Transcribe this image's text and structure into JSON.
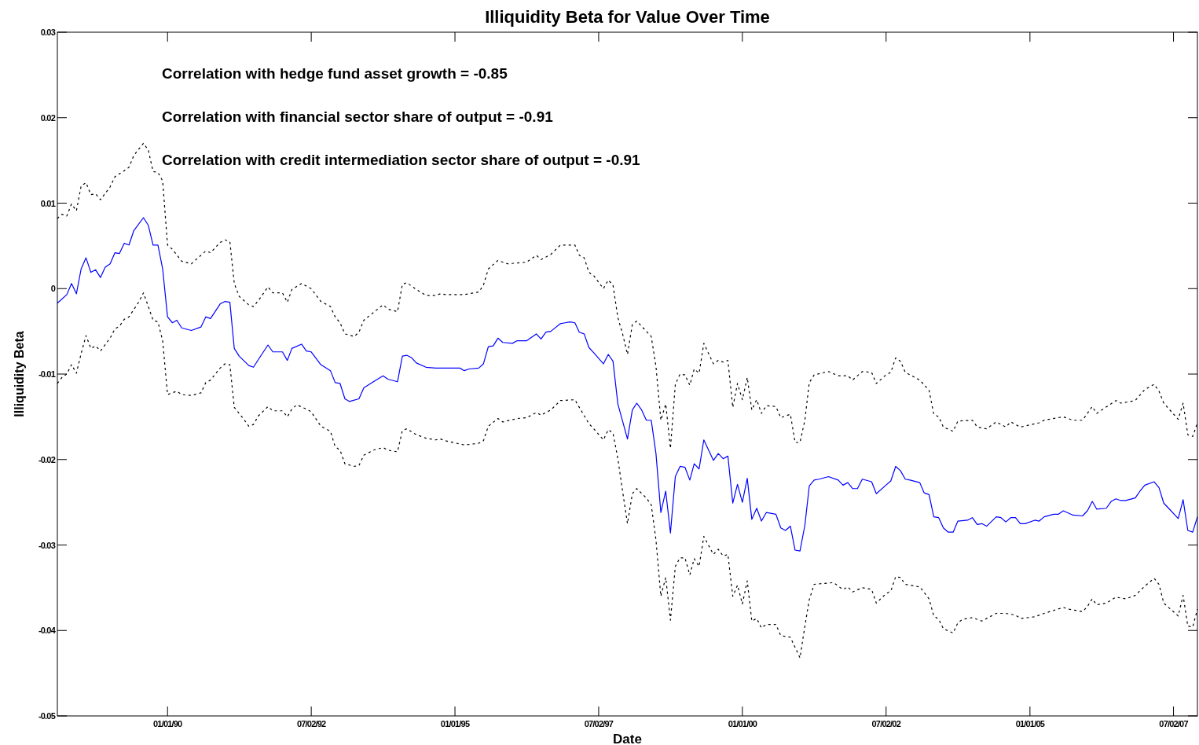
{
  "chart_data": {
    "type": "line",
    "title": "Illiquidity Beta for Value Over Time",
    "xlabel": "Date",
    "ylabel": "Illiquidity Beta",
    "annotations": [
      "Correlation with hedge fund asset growth = -0.85",
      "Correlation with financial sector share of output = -0.91",
      "Correlation with credit intermediation sector share of output = -0.91"
    ],
    "xlim": [
      "1988-02-01",
      "2007-12-01"
    ],
    "xticks": [
      {
        "value": "1990-01-01",
        "label": "01/01/90"
      },
      {
        "value": "1992-07-02",
        "label": "07/02/92"
      },
      {
        "value": "1995-01-01",
        "label": "01/01/95"
      },
      {
        "value": "1997-07-02",
        "label": "07/02/97"
      },
      {
        "value": "2000-01-01",
        "label": "01/01/00"
      },
      {
        "value": "2002-07-02",
        "label": "07/02/02"
      },
      {
        "value": "2005-01-01",
        "label": "01/01/05"
      },
      {
        "value": "2007-07-02",
        "label": "07/02/07"
      }
    ],
    "ylim": [
      -0.05,
      0.03
    ],
    "yticks": [
      -0.05,
      -0.04,
      -0.03,
      -0.02,
      -0.01,
      0,
      0.01,
      0.02,
      0.03
    ],
    "series": [
      {
        "color": "#000000",
        "line_style": "dashed",
        "x": [
          "1988-02",
          "1988-03",
          "1988-04",
          "1988-05",
          "1988-06",
          "1988-07",
          "1988-08",
          "1988-09",
          "1988-10",
          "1988-11",
          "1989-01",
          "1989-02",
          "1989-04",
          "1989-05",
          "1989-06",
          "1989-08",
          "1989-09",
          "1989-10",
          "1989-11",
          "1989-12",
          "1990-01",
          "1990-02",
          "1990-04",
          "1990-06",
          "1990-08",
          "1990-09",
          "1990-10",
          "1990-12",
          "1991-01",
          "1991-02",
          "1991-03",
          "1991-04",
          "1991-06",
          "1991-07",
          "1991-08",
          "1991-10",
          "1991-11",
          "1992-01",
          "1992-02",
          "1992-03",
          "1992-05",
          "1992-07",
          "1992-09",
          "1992-11",
          "1992-12",
          "1993-01",
          "1993-02",
          "1993-04",
          "1993-05",
          "1993-06",
          "1993-08",
          "1993-10",
          "1993-11",
          "1994-01",
          "1994-02",
          "1994-03",
          "1994-05",
          "1994-07",
          "1994-09",
          "1994-10",
          "1994-11",
          "1995-03",
          "1995-06",
          "1995-07",
          "1995-08",
          "1995-10",
          "1995-12",
          "1996-04",
          "1996-06",
          "1996-07",
          "1996-09",
          "1996-11",
          "1997-02",
          "1997-03",
          "1997-04",
          "1997-05",
          "1997-06",
          "1997-08",
          "1997-09",
          "1997-10",
          "1997-11",
          "1997-12",
          "1998-01",
          "1998-02",
          "1998-03",
          "1998-05",
          "1998-06",
          "1998-07",
          "1998-08",
          "1998-09",
          "1998-10",
          "1998-11",
          "1998-12",
          "1999-01",
          "1999-02",
          "1999-03",
          "1999-04",
          "1999-05",
          "1999-07",
          "1999-08",
          "1999-09",
          "1999-10",
          "1999-11",
          "1999-12",
          "2000-01",
          "2000-02",
          "2000-03",
          "2000-04",
          "2000-05",
          "2000-06",
          "2000-08",
          "2000-09",
          "2000-11",
          "2000-12",
          "2001-01",
          "2001-02",
          "2001-03",
          "2001-04",
          "2001-07",
          "2001-09",
          "2001-11",
          "2001-12",
          "2002-02",
          "2002-04",
          "2002-05",
          "2002-07",
          "2002-08",
          "2002-09",
          "2002-10",
          "2002-11",
          "2003-02",
          "2003-04",
          "2003-05",
          "2003-06",
          "2003-07",
          "2003-09",
          "2003-10",
          "2004-01",
          "2004-02",
          "2004-04",
          "2004-06",
          "2004-08",
          "2004-09",
          "2004-11",
          "2005-03",
          "2005-04",
          "2005-08",
          "2005-10",
          "2005-12",
          "2006-02",
          "2006-03",
          "2006-07",
          "2006-08",
          "2006-11",
          "2007-01",
          "2007-03",
          "2007-04",
          "2007-05",
          "2007-08",
          "2007-09",
          "2007-10",
          "2007-11",
          "2007-12"
        ],
        "values": [
          0.0082,
          0.0087,
          0.0085,
          0.0099,
          0.0091,
          0.012,
          0.0124,
          0.011,
          0.0111,
          0.0104,
          0.0119,
          0.0131,
          0.0138,
          0.0142,
          0.0156,
          0.017,
          0.0162,
          0.0137,
          0.0136,
          0.0126,
          0.0051,
          0.0046,
          0.0032,
          0.0029,
          0.0039,
          0.0044,
          0.0042,
          0.0054,
          0.0057,
          0.0055,
          0.0006,
          -0.0009,
          -0.0019,
          -0.0021,
          -0.0014,
          0.0002,
          -0.0005,
          -0.0005,
          -0.0016,
          -0.0001,
          0.0006,
          0,
          -0.0015,
          -0.0021,
          -0.0033,
          -0.004,
          -0.0053,
          -0.0056,
          -0.0051,
          -0.0037,
          -0.0028,
          -0.0019,
          -0.0024,
          -0.0027,
          0.0005,
          0.0007,
          -0.0001,
          -0.0008,
          -0.0008,
          -0.0006,
          -0.0007,
          -0.0007,
          -0.0004,
          0.0004,
          0.0023,
          0.0033,
          0.0029,
          0.0031,
          0.0039,
          0.0034,
          0.004,
          0.0051,
          0.0051,
          0.0039,
          0.0036,
          0.0019,
          0.0015,
          0,
          0.001,
          0.0004,
          -0.0034,
          -0.0053,
          -0.0077,
          -0.0042,
          -0.0038,
          -0.005,
          -0.0056,
          -0.0091,
          -0.0154,
          -0.0135,
          -0.0187,
          -0.0112,
          -0.01,
          -0.0101,
          -0.0113,
          -0.0094,
          -0.0099,
          -0.0064,
          -0.0088,
          -0.0084,
          -0.0086,
          -0.0084,
          -0.0139,
          -0.0111,
          -0.013,
          -0.0104,
          -0.0142,
          -0.013,
          -0.0146,
          -0.0137,
          -0.0138,
          -0.0151,
          -0.0147,
          -0.018,
          -0.018,
          -0.0154,
          -0.011,
          -0.0101,
          -0.0097,
          -0.0102,
          -0.0102,
          -0.0107,
          -0.0097,
          -0.0098,
          -0.0111,
          -0.0101,
          -0.0098,
          -0.0081,
          -0.0085,
          -0.0098,
          -0.0107,
          -0.0119,
          -0.0147,
          -0.015,
          -0.0162,
          -0.0167,
          -0.0155,
          -0.0154,
          -0.0162,
          -0.0164,
          -0.0156,
          -0.0162,
          -0.0156,
          -0.0162,
          -0.0157,
          -0.0154,
          -0.015,
          -0.0154,
          -0.0154,
          -0.0138,
          -0.0146,
          -0.0131,
          -0.0134,
          -0.0131,
          -0.0118,
          -0.0112,
          -0.012,
          -0.0134,
          -0.0153,
          -0.0134,
          -0.0171,
          -0.0173,
          -0.0157
        ]
      },
      {
        "color": "#0000ff",
        "line_style": "solid",
        "x": [
          "1988-02",
          "1988-04",
          "1988-05",
          "1988-06",
          "1988-07",
          "1988-08",
          "1988-09",
          "1988-10",
          "1988-11",
          "1988-12",
          "1989-01",
          "1989-02",
          "1989-03",
          "1989-04",
          "1989-05",
          "1989-06",
          "1989-08",
          "1989-09",
          "1989-10",
          "1989-11",
          "1989-12",
          "1990-01",
          "1990-02",
          "1990-03",
          "1990-04",
          "1990-06",
          "1990-08",
          "1990-09",
          "1990-10",
          "1990-12",
          "1991-01",
          "1991-02",
          "1991-03",
          "1991-04",
          "1991-06",
          "1991-07",
          "1991-08",
          "1991-10",
          "1991-11",
          "1992-01",
          "1992-02",
          "1992-03",
          "1992-05",
          "1992-06",
          "1992-07",
          "1992-09",
          "1992-11",
          "1992-12",
          "1993-01",
          "1993-02",
          "1993-03",
          "1993-05",
          "1993-06",
          "1993-08",
          "1993-10",
          "1993-11",
          "1994-01",
          "1994-02",
          "1994-03",
          "1994-04",
          "1994-05",
          "1994-07",
          "1994-09",
          "1994-11",
          "1995-02",
          "1995-03",
          "1995-04",
          "1995-06",
          "1995-07",
          "1995-08",
          "1995-09",
          "1995-10",
          "1995-11",
          "1996-01",
          "1996-02",
          "1996-04",
          "1996-06",
          "1996-07",
          "1996-08",
          "1996-09",
          "1996-11",
          "1996-12",
          "1997-01",
          "1997-02",
          "1997-03",
          "1997-04",
          "1997-05",
          "1997-06",
          "1997-08",
          "1997-09",
          "1997-10",
          "1997-11",
          "1997-12",
          "1998-01",
          "1998-02",
          "1998-03",
          "1998-04",
          "1998-05",
          "1998-06",
          "1998-07",
          "1998-08",
          "1998-09",
          "1998-10",
          "1998-11",
          "1998-12",
          "1999-01",
          "1999-02",
          "1999-03",
          "1999-04",
          "1999-05",
          "1999-07",
          "1999-08",
          "1999-09",
          "1999-10",
          "1999-11",
          "1999-12",
          "2000-01",
          "2000-02",
          "2000-03",
          "2000-04",
          "2000-05",
          "2000-06",
          "2000-08",
          "2000-09",
          "2000-10",
          "2000-11",
          "2000-12",
          "2001-01",
          "2001-02",
          "2001-03",
          "2001-04",
          "2001-05",
          "2001-07",
          "2001-09",
          "2001-10",
          "2001-11",
          "2001-12",
          "2002-01",
          "2002-02",
          "2002-04",
          "2002-05",
          "2002-07",
          "2002-08",
          "2002-09",
          "2002-10",
          "2002-11",
          "2002-12",
          "2003-02",
          "2003-03",
          "2003-04",
          "2003-05",
          "2003-06",
          "2003-07",
          "2003-08",
          "2003-09",
          "2003-10",
          "2003-12",
          "2004-01",
          "2004-02",
          "2004-03",
          "2004-04",
          "2004-06",
          "2004-07",
          "2004-08",
          "2004-09",
          "2004-10",
          "2004-11",
          "2004-12",
          "2005-02",
          "2005-03",
          "2005-04",
          "2005-06",
          "2005-07",
          "2005-08",
          "2005-10",
          "2005-12",
          "2006-01",
          "2006-02",
          "2006-03",
          "2006-05",
          "2006-06",
          "2006-07",
          "2006-08",
          "2006-09",
          "2006-11",
          "2006-12",
          "2007-01",
          "2007-03",
          "2007-04",
          "2007-05",
          "2007-06",
          "2007-08",
          "2007-09",
          "2007-10",
          "2007-11",
          "2007-12"
        ],
        "values": [
          -0.0017,
          -0.0007,
          0.0006,
          -0.0006,
          0.0023,
          0.0036,
          0.0019,
          0.0022,
          0.0013,
          0.0025,
          0.0029,
          0.0042,
          0.0041,
          0.0053,
          0.0051,
          0.0068,
          0.0083,
          0.0074,
          0.0051,
          0.0051,
          0.0023,
          -0.0033,
          -0.004,
          -0.0037,
          -0.0046,
          -0.0049,
          -0.0045,
          -0.0033,
          -0.0035,
          -0.0018,
          -0.0015,
          -0.0016,
          -0.007,
          -0.0079,
          -0.009,
          -0.0092,
          -0.0083,
          -0.0066,
          -0.0074,
          -0.0074,
          -0.0084,
          -0.007,
          -0.0065,
          -0.0073,
          -0.0074,
          -0.0089,
          -0.0096,
          -0.011,
          -0.0111,
          -0.0129,
          -0.0132,
          -0.0129,
          -0.0116,
          -0.0109,
          -0.0102,
          -0.0106,
          -0.0109,
          -0.0079,
          -0.0078,
          -0.0081,
          -0.0087,
          -0.0092,
          -0.0093,
          -0.0093,
          -0.0093,
          -0.0096,
          -0.0094,
          -0.0093,
          -0.0088,
          -0.0068,
          -0.0067,
          -0.0058,
          -0.0063,
          -0.0064,
          -0.0061,
          -0.0061,
          -0.0053,
          -0.0059,
          -0.0051,
          -0.005,
          -0.0041,
          -0.004,
          -0.0039,
          -0.004,
          -0.0051,
          -0.0053,
          -0.0069,
          -0.0075,
          -0.0088,
          -0.0077,
          -0.0085,
          -0.0135,
          -0.0155,
          -0.0176,
          -0.0142,
          -0.0134,
          -0.0142,
          -0.0154,
          -0.0154,
          -0.0193,
          -0.0262,
          -0.0237,
          -0.0286,
          -0.022,
          -0.0208,
          -0.0209,
          -0.0224,
          -0.0205,
          -0.0211,
          -0.0177,
          -0.0201,
          -0.0193,
          -0.0199,
          -0.0196,
          -0.0251,
          -0.0229,
          -0.025,
          -0.0222,
          -0.027,
          -0.0257,
          -0.0272,
          -0.0262,
          -0.0264,
          -0.028,
          -0.0283,
          -0.0278,
          -0.0306,
          -0.0307,
          -0.0277,
          -0.0231,
          -0.0224,
          -0.0223,
          -0.022,
          -0.0224,
          -0.023,
          -0.0227,
          -0.0234,
          -0.0234,
          -0.0223,
          -0.0226,
          -0.024,
          -0.023,
          -0.0225,
          -0.0208,
          -0.0213,
          -0.0223,
          -0.0224,
          -0.0227,
          -0.0239,
          -0.0241,
          -0.0267,
          -0.0268,
          -0.028,
          -0.0285,
          -0.0285,
          -0.0272,
          -0.0271,
          -0.0268,
          -0.0276,
          -0.0275,
          -0.0278,
          -0.0267,
          -0.0268,
          -0.0273,
          -0.0268,
          -0.0268,
          -0.0275,
          -0.0275,
          -0.0271,
          -0.0272,
          -0.0267,
          -0.0264,
          -0.0264,
          -0.026,
          -0.0265,
          -0.0266,
          -0.026,
          -0.0249,
          -0.0258,
          -0.0257,
          -0.0249,
          -0.0246,
          -0.0248,
          -0.0248,
          -0.0245,
          -0.0237,
          -0.023,
          -0.0226,
          -0.0233,
          -0.0251,
          -0.0257,
          -0.0269,
          -0.0247,
          -0.0283,
          -0.0285,
          -0.0267
        ]
      },
      {
        "color": "#000000",
        "line_style": "dashed",
        "x": [
          "1988-02",
          "1988-03",
          "1988-04",
          "1988-05",
          "1988-06",
          "1988-07",
          "1988-08",
          "1988-09",
          "1988-10",
          "1988-11",
          "1989-01",
          "1989-02",
          "1989-03",
          "1989-04",
          "1989-05",
          "1989-07",
          "1989-08",
          "1989-09",
          "1989-10",
          "1989-11",
          "1989-12",
          "1990-01",
          "1990-03",
          "1990-04",
          "1990-06",
          "1990-08",
          "1990-09",
          "1990-10",
          "1990-12",
          "1991-01",
          "1991-02",
          "1991-03",
          "1991-05",
          "1991-06",
          "1991-07",
          "1991-08",
          "1991-10",
          "1991-11",
          "1992-01",
          "1992-02",
          "1992-03",
          "1992-04",
          "1992-06",
          "1992-07",
          "1992-09",
          "1992-11",
          "1992-12",
          "1993-01",
          "1993-02",
          "1993-04",
          "1993-05",
          "1993-06",
          "1993-08",
          "1993-10",
          "1993-11",
          "1994-01",
          "1994-02",
          "1994-03",
          "1994-05",
          "1994-07",
          "1994-09",
          "1994-10",
          "1994-11",
          "1995-03",
          "1995-06",
          "1995-07",
          "1995-08",
          "1995-10",
          "1995-11",
          "1996-02",
          "1996-04",
          "1996-06",
          "1996-07",
          "1996-09",
          "1996-11",
          "1997-02",
          "1997-03",
          "1997-05",
          "1997-06",
          "1997-08",
          "1997-09",
          "1997-10",
          "1997-11",
          "1997-12",
          "1998-01",
          "1998-02",
          "1998-03",
          "1998-05",
          "1998-06",
          "1998-07",
          "1998-08",
          "1998-09",
          "1998-10",
          "1998-11",
          "1998-12",
          "1999-01",
          "1999-02",
          "1999-03",
          "1999-04",
          "1999-05",
          "1999-07",
          "1999-08",
          "1999-09",
          "1999-10",
          "1999-11",
          "1999-12",
          "2000-01",
          "2000-02",
          "2000-03",
          "2000-04",
          "2000-05",
          "2000-06",
          "2000-08",
          "2000-09",
          "2000-11",
          "2001-01",
          "2001-02",
          "2001-03",
          "2001-04",
          "2001-06",
          "2001-08",
          "2001-10",
          "2001-11",
          "2001-12",
          "2002-02",
          "2002-04",
          "2002-05",
          "2002-07",
          "2002-08",
          "2002-09",
          "2002-10",
          "2002-11",
          "2003-02",
          "2003-04",
          "2003-05",
          "2003-06",
          "2003-07",
          "2003-09",
          "2003-10",
          "2003-11",
          "2004-01",
          "2004-03",
          "2004-06",
          "2004-08",
          "2004-10",
          "2004-11",
          "2005-02",
          "2005-04",
          "2005-08",
          "2005-09",
          "2005-12",
          "2006-01",
          "2006-02",
          "2006-03",
          "2006-05",
          "2006-07",
          "2006-09",
          "2006-11",
          "2007-01",
          "2007-03",
          "2007-04",
          "2007-05",
          "2007-08",
          "2007-09",
          "2007-10",
          "2007-11",
          "2007-12"
        ],
        "values": [
          -0.0111,
          -0.0104,
          -0.01,
          -0.0089,
          -0.0099,
          -0.0076,
          -0.0055,
          -0.007,
          -0.0067,
          -0.0073,
          -0.0058,
          -0.0047,
          -0.0044,
          -0.0036,
          -0.0033,
          -0.0016,
          -0.0005,
          -0.0021,
          -0.0037,
          -0.0039,
          -0.0061,
          -0.0124,
          -0.012,
          -0.0124,
          -0.0125,
          -0.0122,
          -0.011,
          -0.0107,
          -0.0093,
          -0.0088,
          -0.0089,
          -0.0139,
          -0.0153,
          -0.0161,
          -0.0159,
          -0.0149,
          -0.0138,
          -0.0143,
          -0.0143,
          -0.015,
          -0.0141,
          -0.0136,
          -0.0141,
          -0.0144,
          -0.0161,
          -0.0167,
          -0.0185,
          -0.0189,
          -0.0205,
          -0.0208,
          -0.0207,
          -0.0195,
          -0.0189,
          -0.0186,
          -0.0189,
          -0.0191,
          -0.0166,
          -0.0164,
          -0.0171,
          -0.0175,
          -0.0177,
          -0.0176,
          -0.0178,
          -0.0183,
          -0.0181,
          -0.0178,
          -0.0161,
          -0.0152,
          -0.0156,
          -0.0152,
          -0.0151,
          -0.0145,
          -0.0148,
          -0.0142,
          -0.0131,
          -0.013,
          -0.0139,
          -0.0158,
          -0.0164,
          -0.0177,
          -0.0165,
          -0.0169,
          -0.0199,
          -0.0237,
          -0.0275,
          -0.024,
          -0.0234,
          -0.0245,
          -0.0253,
          -0.0294,
          -0.036,
          -0.0338,
          -0.0388,
          -0.0325,
          -0.0315,
          -0.0315,
          -0.0335,
          -0.0316,
          -0.0325,
          -0.029,
          -0.0311,
          -0.0305,
          -0.0313,
          -0.0311,
          -0.036,
          -0.0347,
          -0.0369,
          -0.0342,
          -0.0389,
          -0.0386,
          -0.0397,
          -0.0393,
          -0.0393,
          -0.0406,
          -0.0408,
          -0.0432,
          -0.0395,
          -0.0364,
          -0.0346,
          -0.0345,
          -0.0344,
          -0.0352,
          -0.0349,
          -0.0355,
          -0.035,
          -0.0352,
          -0.0368,
          -0.0357,
          -0.0354,
          -0.0337,
          -0.0338,
          -0.0346,
          -0.0349,
          -0.0363,
          -0.0383,
          -0.0387,
          -0.0398,
          -0.0403,
          -0.0391,
          -0.0387,
          -0.0385,
          -0.0389,
          -0.038,
          -0.038,
          -0.0382,
          -0.0386,
          -0.0384,
          -0.038,
          -0.0373,
          -0.0375,
          -0.0378,
          -0.0372,
          -0.0363,
          -0.037,
          -0.0368,
          -0.0361,
          -0.0363,
          -0.0359,
          -0.0348,
          -0.0339,
          -0.0346,
          -0.0368,
          -0.0383,
          -0.0359,
          -0.0395,
          -0.0396,
          -0.0375
        ]
      }
    ]
  }
}
